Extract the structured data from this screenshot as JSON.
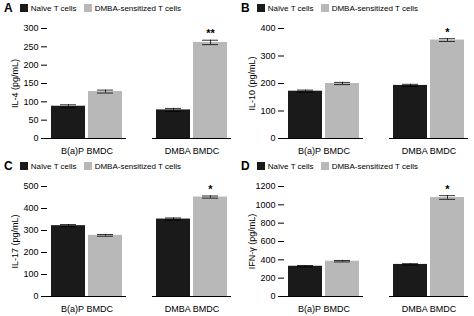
{
  "chart_data": [
    {
      "type": "bar",
      "title": "A",
      "ylabel": "IL-4 (pg/mL)",
      "categories": [
        "B(a)P BMDC",
        "DMBA BMDC"
      ],
      "series": [
        {
          "name": "Naïve T cells",
          "color": "#1a1a1a",
          "values": [
            88,
            78
          ],
          "errors": [
            4,
            4
          ]
        },
        {
          "name": "DMBA-sensitized T cells",
          "color": "#b8b8b8",
          "values": [
            128,
            262
          ],
          "errors": [
            4,
            6
          ]
        }
      ],
      "ylim": [
        0,
        300
      ],
      "yticks": [
        0,
        50,
        100,
        150,
        200,
        250,
        300
      ],
      "grid": false,
      "legend": "upper left",
      "annotations": [
        {
          "category": "DMBA BMDC",
          "series": "DMBA-sensitized T cells",
          "text": "**"
        }
      ]
    },
    {
      "type": "bar",
      "title": "B",
      "ylabel": "IL-10 (pg/mL)",
      "categories": [
        "B(a)P BMDC",
        "DMBA BMDC"
      ],
      "series": [
        {
          "name": "Naïve T cells",
          "color": "#1a1a1a",
          "values": [
            172,
            193
          ],
          "errors": [
            4,
            4
          ]
        },
        {
          "name": "DMBA-sensitized T cells",
          "color": "#b8b8b8",
          "values": [
            200,
            358
          ],
          "errors": [
            4,
            5
          ]
        }
      ],
      "ylim": [
        0,
        400
      ],
      "yticks": [
        0,
        100,
        200,
        300,
        400
      ],
      "grid": false,
      "legend": "upper left",
      "annotations": [
        {
          "category": "DMBA BMDC",
          "series": "DMBA-sensitized T cells",
          "text": "*"
        }
      ]
    },
    {
      "type": "bar",
      "title": "C",
      "ylabel": "IL-17 (pg/mL)",
      "categories": [
        "B(a)P BMDC",
        "DMBA BMDC"
      ],
      "series": [
        {
          "name": "Naïve T cells",
          "color": "#1a1a1a",
          "values": [
            322,
            352
          ],
          "errors": [
            5,
            5
          ]
        },
        {
          "name": "DMBA-sensitized T cells",
          "color": "#b8b8b8",
          "values": [
            278,
            452
          ],
          "errors": [
            4,
            5
          ]
        }
      ],
      "ylim": [
        0,
        500
      ],
      "yticks": [
        0,
        100,
        200,
        300,
        400,
        500
      ],
      "grid": false,
      "legend": "upper left",
      "annotations": [
        {
          "category": "DMBA BMDC",
          "series": "DMBA-sensitized T cells",
          "text": "*"
        }
      ]
    },
    {
      "type": "bar",
      "title": "D",
      "ylabel": "IFN-γ (pg/mL)",
      "categories": [
        "B(a)P BMDC",
        "DMBA BMDC"
      ],
      "series": [
        {
          "name": "Naïve T cells",
          "color": "#1a1a1a",
          "values": [
            330,
            350
          ],
          "errors": [
            8,
            8
          ]
        },
        {
          "name": "DMBA-sensitized T cells",
          "color": "#b8b8b8",
          "values": [
            385,
            1080
          ],
          "errors": [
            8,
            20
          ]
        }
      ],
      "ylim": [
        0,
        1200
      ],
      "yticks": [
        0,
        200,
        400,
        600,
        800,
        1000,
        1200
      ],
      "grid": false,
      "legend": "upper left",
      "annotations": [
        {
          "category": "DMBA BMDC",
          "series": "DMBA-sensitized T cells",
          "text": "*"
        }
      ]
    }
  ]
}
